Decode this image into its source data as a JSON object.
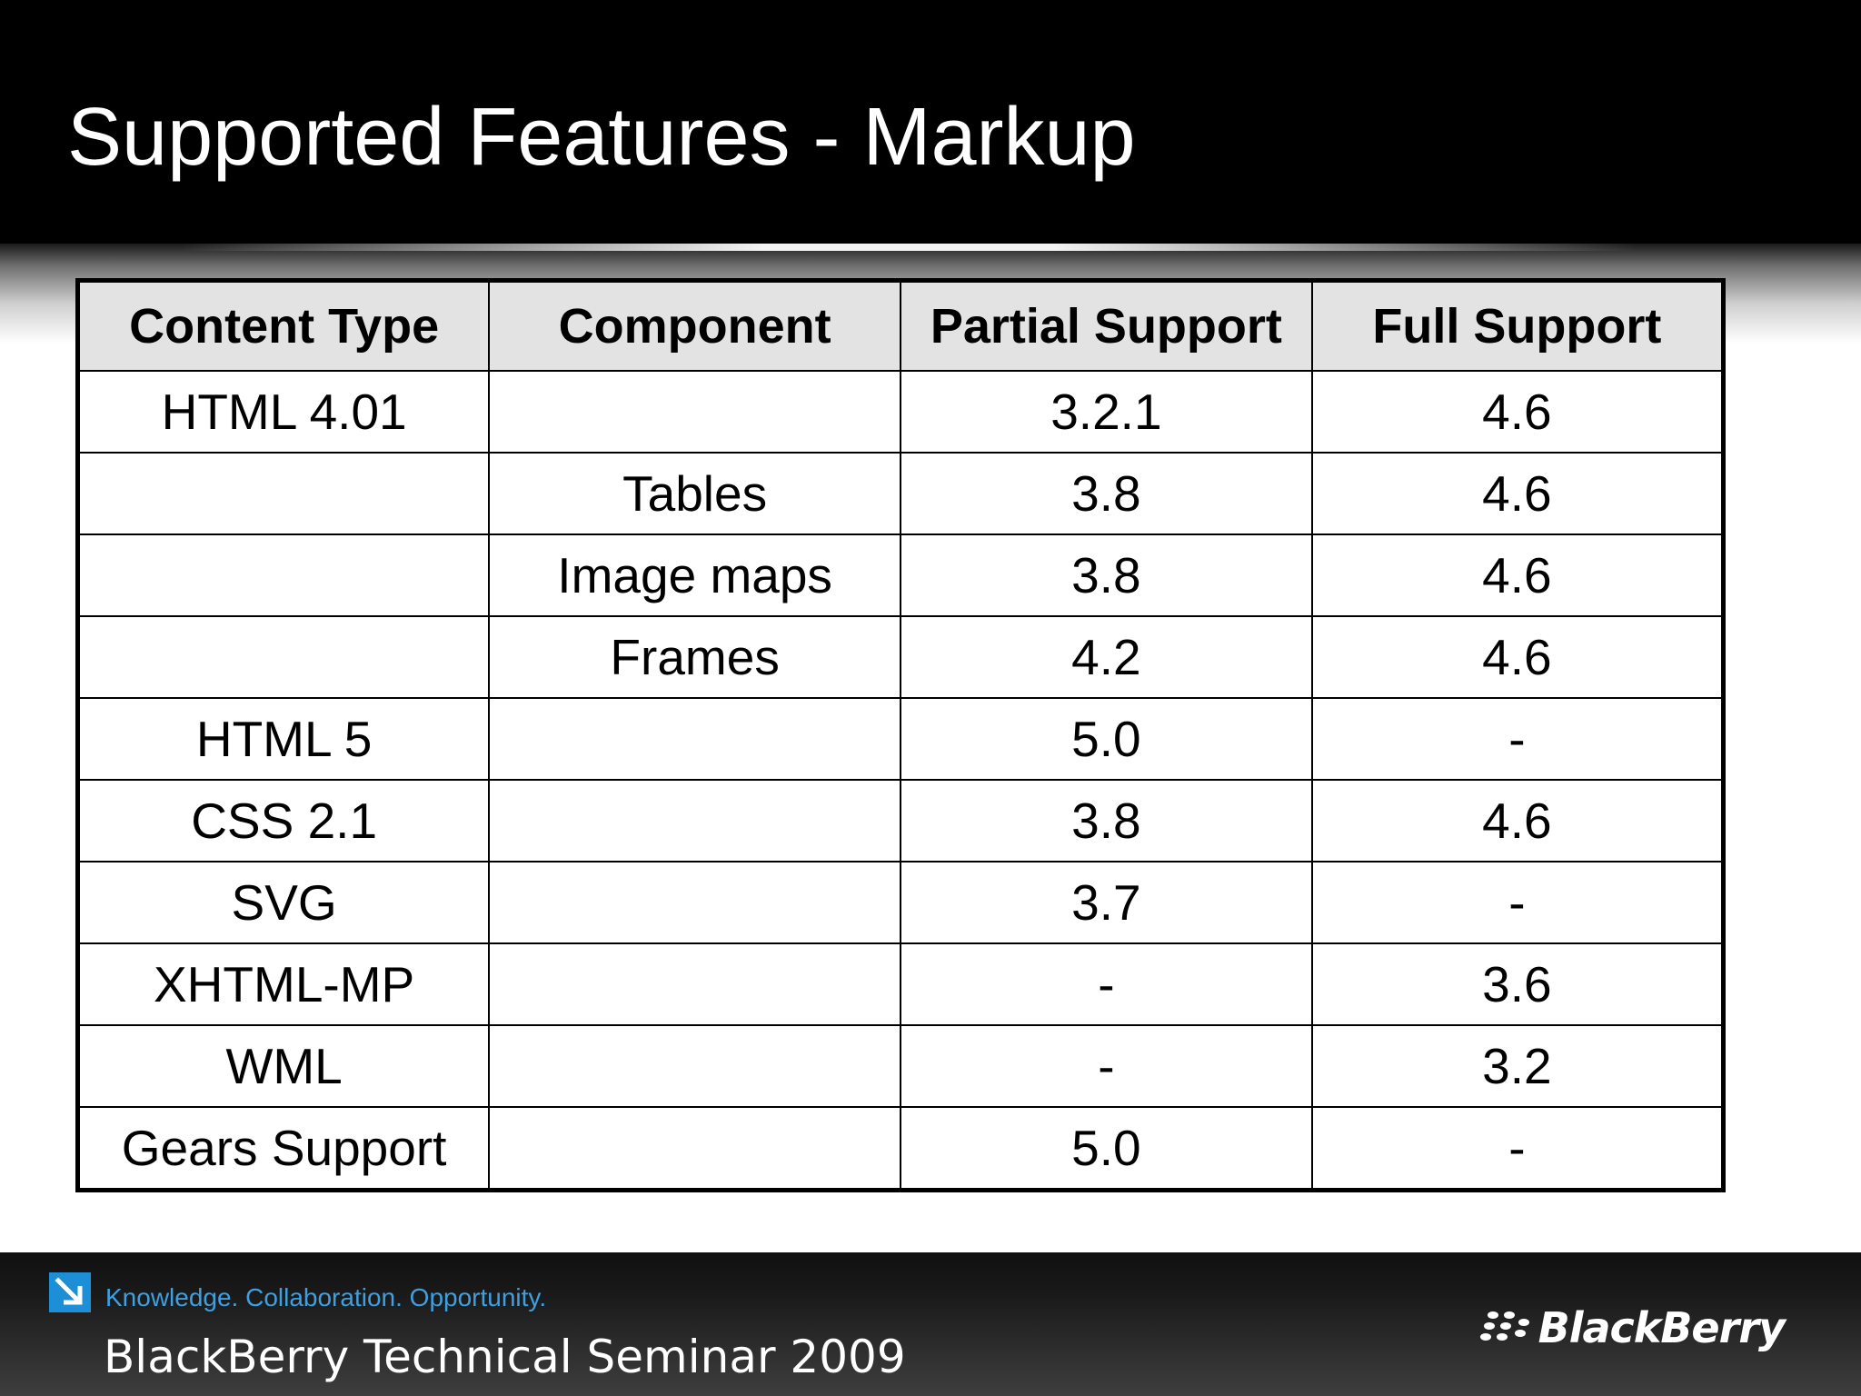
{
  "slide": {
    "title": "Supported Features - Markup"
  },
  "table": {
    "headers": [
      "Content Type",
      "Component",
      "Partial Support",
      "Full Support"
    ],
    "rows": [
      [
        "HTML 4.01",
        "",
        "3.2.1",
        "4.6"
      ],
      [
        "",
        "Tables",
        "3.8",
        "4.6"
      ],
      [
        "",
        "Image maps",
        "3.8",
        "4.6"
      ],
      [
        "",
        "Frames",
        "4.2",
        "4.6"
      ],
      [
        "HTML 5",
        "",
        "5.0",
        "-"
      ],
      [
        "CSS 2.1",
        "",
        "3.8",
        "4.6"
      ],
      [
        "SVG",
        "",
        "3.7",
        "-"
      ],
      [
        "XHTML-MP",
        "",
        "-",
        "3.6"
      ],
      [
        "WML",
        "",
        "-",
        "3.2"
      ],
      [
        "Gears Support",
        "",
        "5.0",
        "-"
      ]
    ]
  },
  "footer": {
    "tagline": "Knowledge. Collaboration. Opportunity.",
    "event": "BlackBerry Technical Seminar 2009",
    "brand": "BlackBerry",
    "arrow_icon": "arrow-down-right-icon",
    "logo_icon": "blackberry-logo-icon",
    "accent_color": "#1d8fd6"
  }
}
